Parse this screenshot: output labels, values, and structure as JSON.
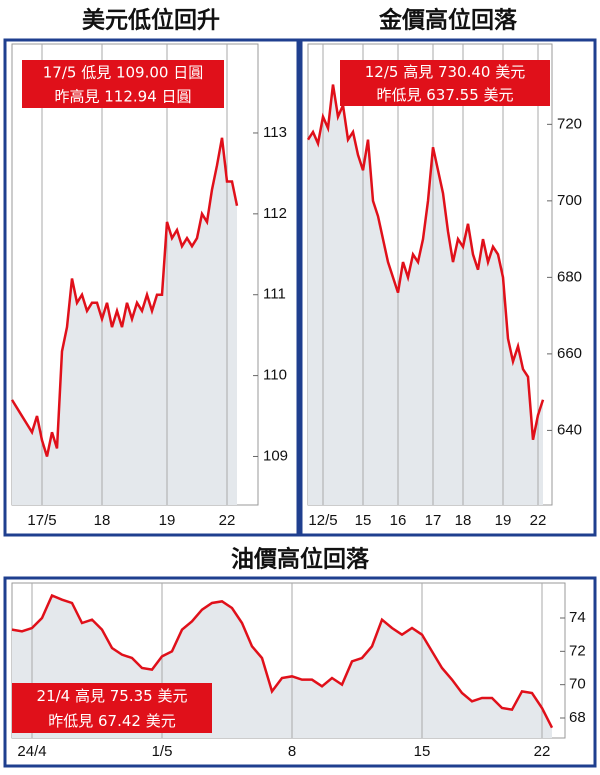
{
  "chart_data": [
    {
      "type": "area",
      "title": "美元低位回升",
      "annotations": [
        "17/5 低見 109.00 日圓",
        "昨高見 112.94 日圓"
      ],
      "categories": [
        null,
        null,
        null,
        null,
        null,
        null,
        "17/5",
        null,
        null,
        null,
        null,
        null,
        null,
        null,
        null,
        null,
        null,
        null,
        "18",
        null,
        null,
        null,
        null,
        null,
        null,
        null,
        null,
        null,
        null,
        null,
        null,
        "19",
        null,
        null,
        null,
        null,
        null,
        null,
        null,
        null,
        null,
        null,
        null,
        "22",
        null,
        null
      ],
      "values": [
        109.7,
        109.6,
        109.5,
        109.4,
        109.3,
        109.5,
        109.2,
        109.0,
        109.3,
        109.1,
        110.3,
        110.6,
        111.2,
        110.9,
        111.0,
        110.8,
        110.9,
        110.9,
        110.7,
        110.9,
        110.6,
        110.8,
        110.6,
        110.9,
        110.7,
        110.9,
        110.8,
        111.0,
        110.8,
        111.0,
        111.0,
        111.9,
        111.7,
        111.8,
        111.6,
        111.7,
        111.6,
        111.7,
        112.0,
        111.9,
        112.3,
        112.6,
        112.94,
        112.4,
        112.4,
        112.1
      ],
      "color": "#e0101a",
      "fill_color": "#e4e8ec",
      "annotation_color": "#e0101a",
      "ylim": [
        108.4,
        114.1
      ],
      "yticks": [
        109,
        110,
        111,
        112,
        113
      ],
      "grid": true
    },
    {
      "type": "area",
      "title": "金價高位回落",
      "annotations": [
        "12/5 高見 730.40 美元",
        "昨低見 637.55 美元"
      ],
      "categories": [
        null,
        null,
        null,
        "12/5",
        null,
        null,
        null,
        null,
        null,
        null,
        null,
        "15",
        null,
        null,
        null,
        null,
        null,
        null,
        "16",
        null,
        null,
        null,
        null,
        null,
        null,
        "17",
        null,
        null,
        null,
        null,
        null,
        "18",
        null,
        null,
        null,
        null,
        null,
        null,
        null,
        "19",
        null,
        null,
        null,
        null,
        null,
        null,
        "22",
        null
      ],
      "values": [
        716,
        718,
        715,
        722,
        719,
        730.4,
        722,
        725,
        716,
        718,
        712,
        708,
        716,
        700,
        696,
        690,
        684,
        680,
        676,
        684,
        680,
        686,
        684,
        690,
        700,
        714,
        708,
        702,
        692,
        684,
        690,
        688,
        694,
        686,
        682,
        690,
        684,
        688,
        686,
        680,
        664,
        658,
        662,
        656,
        654,
        637.55,
        644,
        648
      ],
      "color": "#e0101a",
      "fill_color": "#e4e8ec",
      "annotation_color": "#e0101a",
      "ylim": [
        620.5,
        741
      ],
      "yticks": [
        640,
        660,
        680,
        700,
        720
      ],
      "grid": true
    },
    {
      "type": "area",
      "title": "油價高位回落",
      "annotations": [
        "21/4 高見 75.35 美元",
        "昨低見 67.42 美元"
      ],
      "categories": [
        null,
        null,
        "24/4",
        null,
        null,
        null,
        null,
        null,
        null,
        null,
        null,
        null,
        null,
        null,
        null,
        "1/5",
        null,
        null,
        null,
        null,
        null,
        null,
        null,
        null,
        null,
        null,
        null,
        null,
        "8",
        null,
        null,
        null,
        null,
        null,
        null,
        null,
        null,
        null,
        null,
        null,
        null,
        "15",
        null,
        null,
        null,
        null,
        null,
        null,
        null,
        null,
        null,
        null,
        null,
        "22",
        null
      ],
      "values": [
        73.3,
        73.2,
        73.4,
        74.0,
        75.35,
        75.1,
        74.9,
        73.7,
        73.9,
        73.3,
        72.2,
        71.8,
        71.6,
        71.0,
        70.9,
        71.7,
        72.0,
        73.3,
        73.8,
        74.5,
        74.9,
        75.0,
        74.6,
        73.7,
        72.3,
        71.6,
        69.6,
        70.4,
        70.5,
        70.3,
        70.3,
        69.9,
        70.4,
        70.0,
        71.4,
        71.6,
        72.3,
        73.9,
        73.4,
        73.0,
        73.4,
        73.0,
        72.0,
        71.0,
        70.3,
        69.5,
        69.0,
        69.2,
        69.2,
        68.6,
        68.5,
        69.6,
        69.5,
        68.6,
        67.42
      ],
      "color": "#e0101a",
      "fill_color": "#e4e8ec",
      "annotation_color": "#e0101a",
      "ylim": [
        66.8,
        76.1
      ],
      "yticks": [
        68,
        70,
        72,
        74
      ],
      "grid": true
    }
  ]
}
